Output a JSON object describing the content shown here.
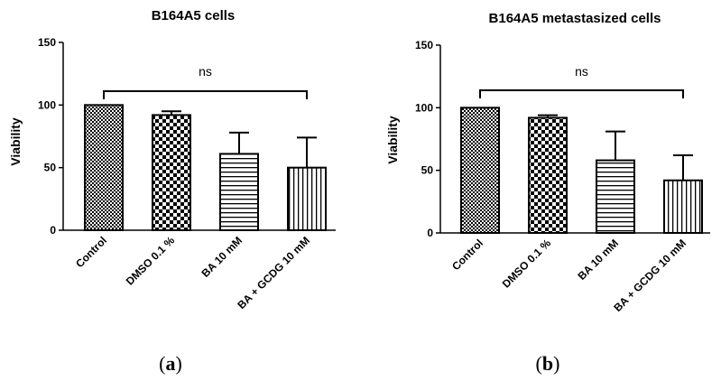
{
  "chart_data": [
    {
      "type": "bar",
      "title": "B164A5 cells",
      "ylabel": "Viability",
      "ylim": [
        0,
        150
      ],
      "yticks": [
        0,
        50,
        100,
        150
      ],
      "categories": [
        "Control",
        "DMSO 0.1 %",
        "BA 10 mM",
        "BA + GCDG 10 mM"
      ],
      "values": [
        100,
        92,
        61,
        50
      ],
      "errors": [
        0,
        3,
        17,
        24
      ],
      "fill_patterns": [
        "dense-crosshatch",
        "checkerboard",
        "horizontal-lines",
        "vertical-lines"
      ],
      "annotation": "ns",
      "panel_letter": "a"
    },
    {
      "type": "bar",
      "title": "B164A5 metastasized cells",
      "ylabel": "Viability",
      "ylim": [
        0,
        150
      ],
      "yticks": [
        0,
        50,
        100,
        150
      ],
      "categories": [
        "Control",
        "DMSO 0.1 %",
        "BA 10 mM",
        "BA + GCDG 10 mM"
      ],
      "values": [
        100,
        92,
        58,
        42
      ],
      "errors": [
        0,
        2,
        23,
        20
      ],
      "fill_patterns": [
        "dense-crosshatch",
        "checkerboard",
        "horizontal-lines",
        "vertical-lines"
      ],
      "annotation": "ns",
      "panel_letter": "b"
    }
  ]
}
